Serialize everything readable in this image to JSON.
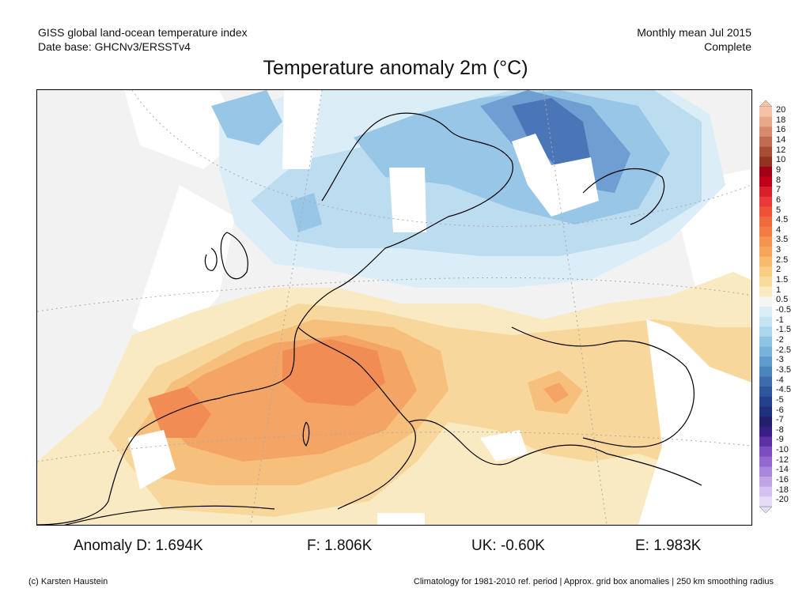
{
  "header": {
    "line1_left": "GISS global land-ocean temperature index",
    "line2_left": "Date base: GHCNv3/ERSSTv4",
    "line1_right": "Monthly mean Jul 2015",
    "line2_right": "Complete"
  },
  "title": "Temperature anomaly 2m (°C)",
  "colorbar": {
    "labels": [
      "20",
      "18",
      "16",
      "14",
      "12",
      "10",
      "9",
      "8",
      "7",
      "6",
      "5",
      "4.5",
      "4",
      "3.5",
      "3",
      "2.5",
      "2",
      "1.5",
      "1",
      "0.5",
      "-0.5",
      "-1",
      "-1.5",
      "-2",
      "-2.5",
      "-3",
      "-3.5",
      "-4",
      "-4.5",
      "-5",
      "-6",
      "-7",
      "-8",
      "-9",
      "-10",
      "-12",
      "-14",
      "-16",
      "-18",
      "-20"
    ],
    "colors": [
      "#f4c3a6",
      "#e8a98a",
      "#d88b6c",
      "#c06c50",
      "#a84c34",
      "#93321f",
      "#a00018",
      "#c00018",
      "#d8202a",
      "#e83838",
      "#ee5038",
      "#f06a3c",
      "#f27c44",
      "#f4924e",
      "#f6a65a",
      "#f8ba6c",
      "#f8cd84",
      "#f8dc9c",
      "#faeac2",
      "#f5f5f5",
      "#dbeef8",
      "#c6e4f4",
      "#aad6ee",
      "#8ec4e4",
      "#76b2da",
      "#5e9ccc",
      "#4c84bc",
      "#3c6cac",
      "#2e569c",
      "#24428c",
      "#20307c",
      "#22206c",
      "#3a1e88",
      "#5e30a8",
      "#7c4cc0",
      "#9468d0",
      "#aa86dc",
      "#c0a4e6",
      "#d4c2ee",
      "#e6dcf6"
    ]
  },
  "anomalies": {
    "d": "Anomaly D: 1.694K",
    "f": "F: 1.806K",
    "uk": "UK: -0.60K",
    "e": "E: 1.983K"
  },
  "footer": {
    "left": "(c) Karsten Haustein",
    "right": "Climatology for 1981-2010 ref. period | Approx. grid box anomalies | 250 km smoothing radius"
  },
  "map": {
    "palette": {
      "no_data": "#ffffff",
      "background": "#f2f2f2",
      "warm1": "#faeac2",
      "warm2": "#f8d79c",
      "warm3": "#f6bf7c",
      "warm4": "#f4a464",
      "warm5": "#f08c54",
      "cool1": "#dbeef8",
      "cool2": "#bcdcf0",
      "cool3": "#98c6e6",
      "cool4": "#6e9ed2",
      "cool5": "#4a76b8",
      "coast": "#000000"
    }
  }
}
